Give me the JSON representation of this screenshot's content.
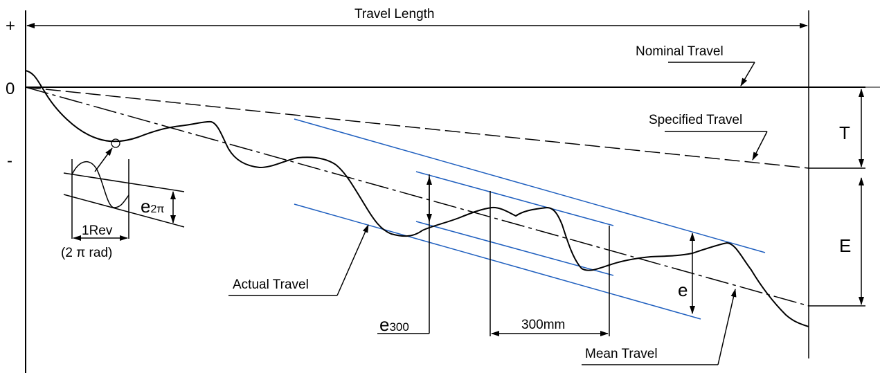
{
  "axis": {
    "plus": "+",
    "zero": "0",
    "minus": "-"
  },
  "labels": {
    "travel_length": "Travel Length",
    "nominal_travel": "Nominal Travel",
    "specified_travel": "Specified Travel",
    "actual_travel": "Actual Travel",
    "mean_travel": "Mean Travel",
    "T": "T",
    "E": "E",
    "e": "e",
    "e300_base": "e",
    "e300_sub": "300",
    "e2pi_base": "e",
    "e2pi_sub": "2π",
    "span_300": "300mm",
    "rev": "1Rev",
    "rad": "(2 π rad)"
  },
  "colors": {
    "line": "#000000",
    "band": "#1f5fbf"
  }
}
